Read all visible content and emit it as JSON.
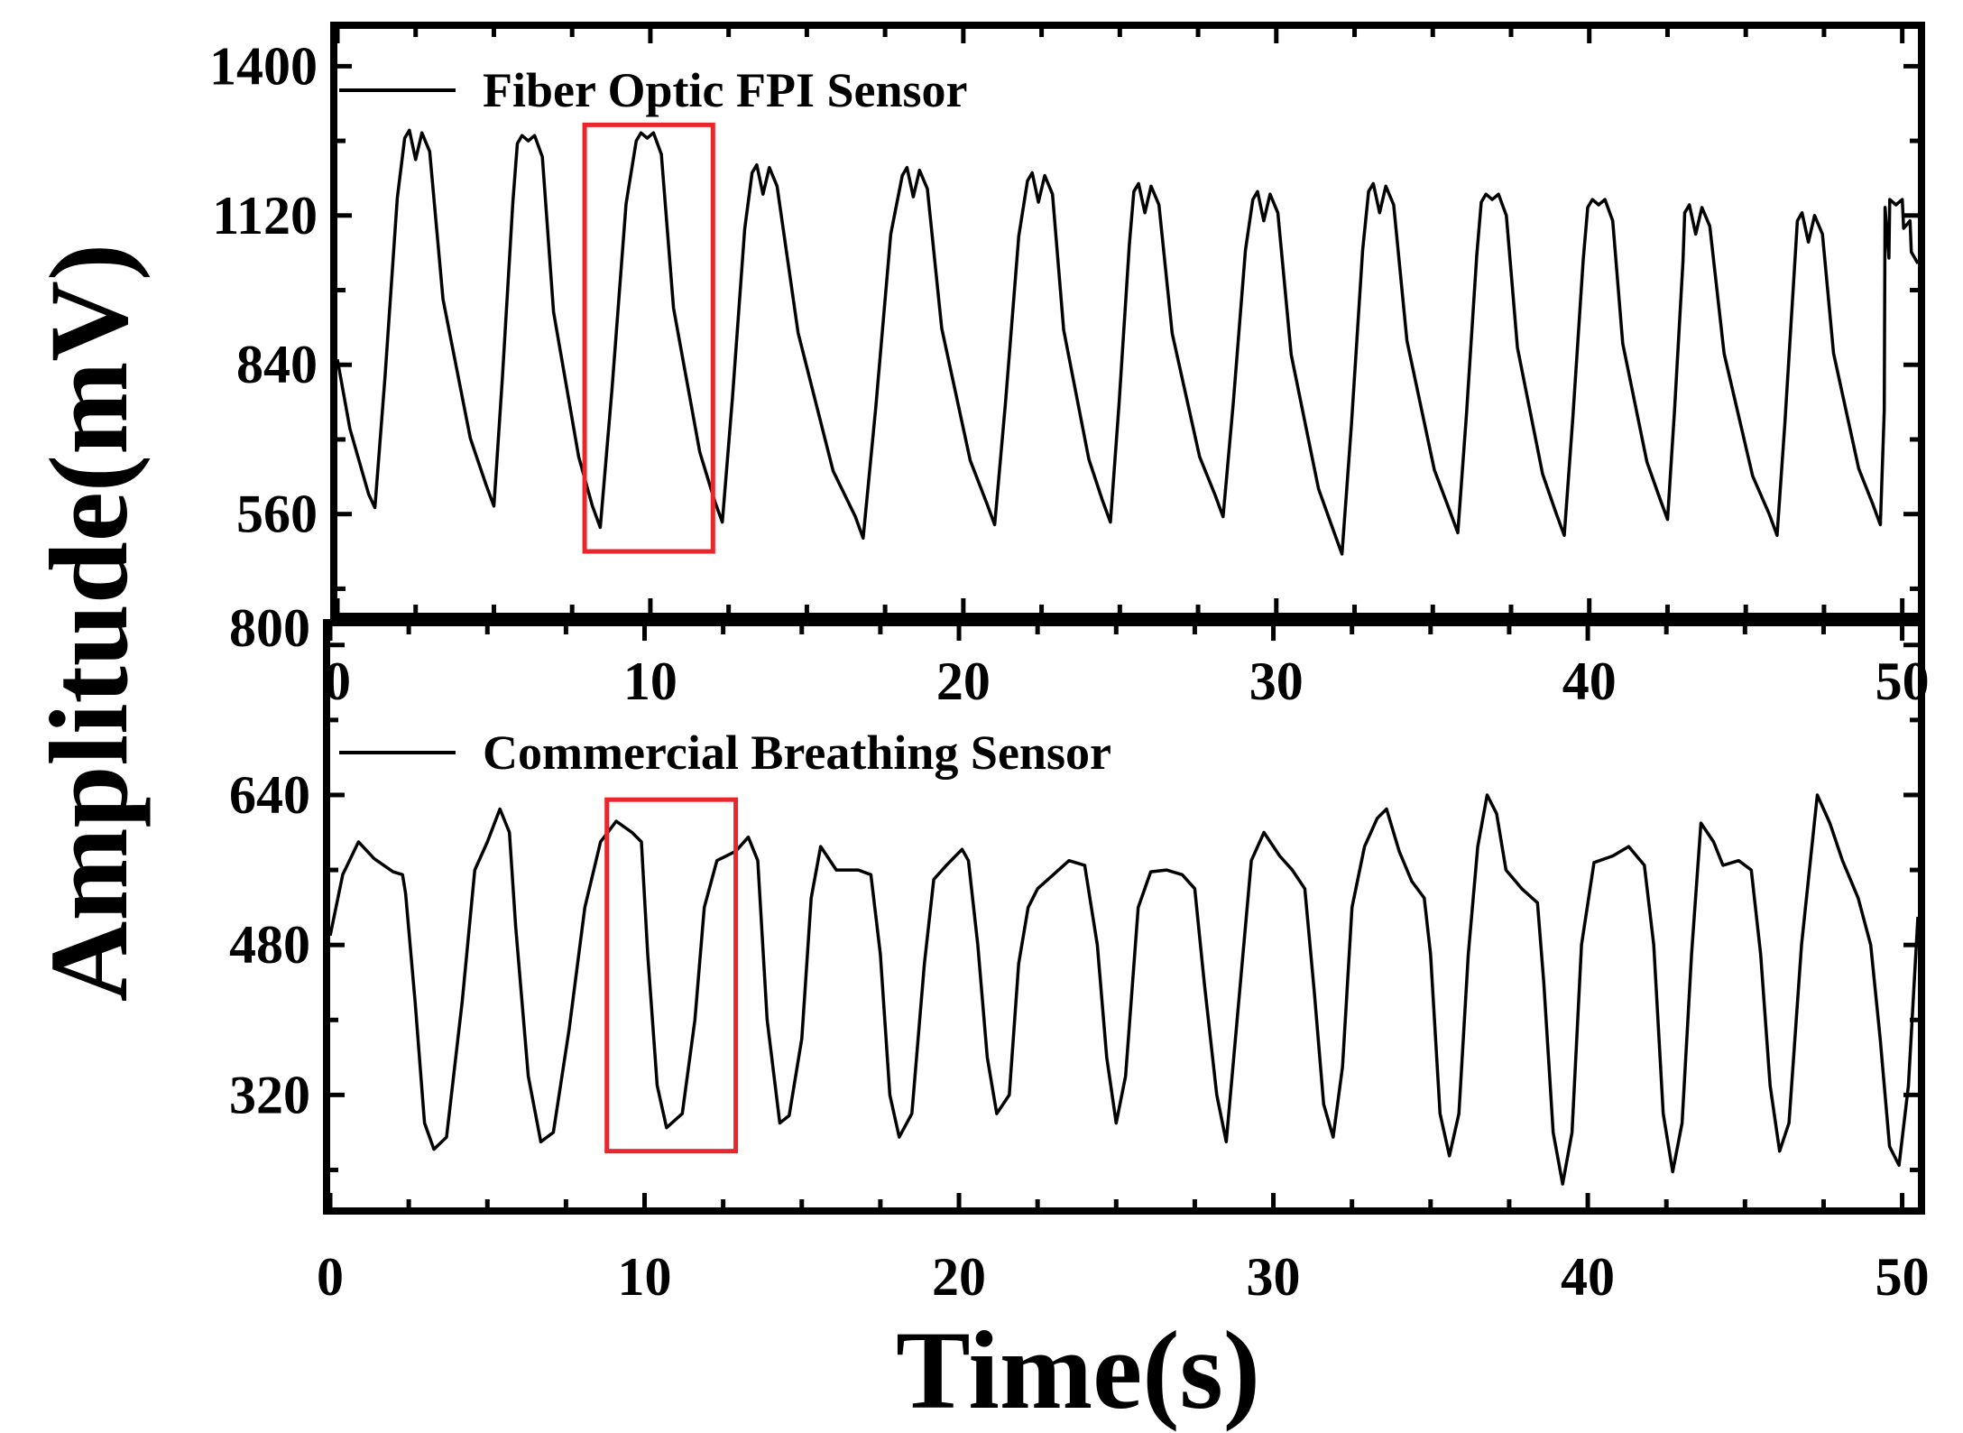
{
  "chart_data": [
    {
      "type": "line",
      "panel": "top",
      "legend": "Fiber Optic FPI Sensor",
      "xlabel": "Time(s)",
      "ylabel": "Amplitude(mV)",
      "xlim": [
        0,
        50.5
      ],
      "ylim": [
        375,
        1470
      ],
      "xticks": [
        0,
        10,
        20,
        30,
        40,
        50
      ],
      "xtick_labels": [
        "0",
        "10",
        "20",
        "30",
        "40",
        "50"
      ],
      "yticks": [
        560,
        840,
        1120,
        1400
      ],
      "ytick_labels": [
        "560",
        "840",
        "1120",
        "1400"
      ],
      "color": "#000000",
      "cycles": [
        {
          "start": 0.0,
          "peak_t": 2.5,
          "peak_v": 1280,
          "trough_t": 1.2,
          "trough_v": 572,
          "dip": true
        },
        {
          "start": 3.6,
          "peak_t": 6.1,
          "peak_v": 1270,
          "trough_t": 5.0,
          "trough_v": 575,
          "dip": false
        },
        {
          "start": 7.6,
          "peak_t": 9.9,
          "peak_v": 1275,
          "trough_t": 8.4,
          "trough_v": 535,
          "dip": false
        },
        {
          "start": 11.5,
          "peak_t": 13.6,
          "peak_v": 1215,
          "trough_t": 12.3,
          "trough_v": 545,
          "dip": true
        },
        {
          "start": 15.6,
          "peak_t": 18.4,
          "peak_v": 1210,
          "trough_t": 16.8,
          "trough_v": 515,
          "dip": true
        },
        {
          "start": 20.0,
          "peak_t": 22.4,
          "peak_v": 1200,
          "trough_t": 21.0,
          "trough_v": 540,
          "dip": true
        },
        {
          "start": 23.5,
          "peak_t": 25.8,
          "peak_v": 1180,
          "trough_t": 24.7,
          "trough_v": 545,
          "dip": true
        },
        {
          "start": 27.0,
          "peak_t": 29.6,
          "peak_v": 1165,
          "trough_t": 28.3,
          "trough_v": 555,
          "dip": true
        },
        {
          "start": 31.0,
          "peak_t": 33.3,
          "peak_v": 1180,
          "trough_t": 32.1,
          "trough_v": 485,
          "dip": true
        },
        {
          "start": 34.8,
          "peak_t": 36.9,
          "peak_v": 1160,
          "trough_t": 35.8,
          "trough_v": 525,
          "dip": false
        },
        {
          "start": 38.3,
          "peak_t": 40.3,
          "peak_v": 1150,
          "trough_t": 39.2,
          "trough_v": 520,
          "dip": false
        },
        {
          "start": 41.6,
          "peak_t": 43.4,
          "peak_v": 1140,
          "trough_t": 42.5,
          "trough_v": 550,
          "dip": true
        },
        {
          "start": 45.0,
          "peak_t": 47.0,
          "peak_v": 1125,
          "trough_t": 46.0,
          "trough_v": 520,
          "dip": true
        },
        {
          "start": 48.5,
          "peak_t": 49.8,
          "peak_v": 1150,
          "trough_t": 49.3,
          "trough_v": 540,
          "dip": false
        }
      ],
      "initial_value": 850,
      "final_value": 1030,
      "highlight_box": {
        "x0": 7.9,
        "x1": 12.0,
        "y0": 490,
        "y1": 1290,
        "color": "#e8262c"
      }
    },
    {
      "type": "line",
      "panel": "bottom",
      "legend": "Commercial Breathing Sensor",
      "xlabel": "Time(s)",
      "ylabel": "Amplitude(mV)",
      "xlim": [
        0,
        50.5
      ],
      "ylim": [
        200,
        820
      ],
      "xticks": [
        0,
        10,
        20,
        30,
        40,
        50
      ],
      "xtick_labels": [
        "0",
        "10",
        "20",
        "30",
        "40",
        "50"
      ],
      "yticks": [
        320,
        480,
        640,
        800
      ],
      "ytick_labels": [
        "320",
        "480",
        "640",
        "800"
      ],
      "color": "#000000",
      "points": [
        [
          0.0,
          490
        ],
        [
          0.4,
          555
        ],
        [
          0.9,
          590
        ],
        [
          1.4,
          572
        ],
        [
          2.0,
          558
        ],
        [
          2.3,
          555
        ],
        [
          2.4,
          535
        ],
        [
          2.7,
          420
        ],
        [
          3.0,
          290
        ],
        [
          3.3,
          262
        ],
        [
          3.7,
          275
        ],
        [
          4.2,
          420
        ],
        [
          4.6,
          560
        ],
        [
          5.0,
          590
        ],
        [
          5.4,
          625
        ],
        [
          5.7,
          600
        ],
        [
          5.9,
          500
        ],
        [
          6.3,
          340
        ],
        [
          6.7,
          270
        ],
        [
          7.1,
          280
        ],
        [
          7.6,
          390
        ],
        [
          8.1,
          520
        ],
        [
          8.6,
          590
        ],
        [
          9.1,
          612
        ],
        [
          9.6,
          600
        ],
        [
          9.9,
          590
        ],
        [
          10.1,
          470
        ],
        [
          10.4,
          330
        ],
        [
          10.7,
          285
        ],
        [
          11.2,
          300
        ],
        [
          11.6,
          400
        ],
        [
          11.9,
          520
        ],
        [
          12.3,
          570
        ],
        [
          12.9,
          580
        ],
        [
          13.3,
          595
        ],
        [
          13.6,
          570
        ],
        [
          13.9,
          400
        ],
        [
          14.3,
          290
        ],
        [
          14.6,
          298
        ],
        [
          15.0,
          380
        ],
        [
          15.3,
          530
        ],
        [
          15.6,
          585
        ],
        [
          16.1,
          560
        ],
        [
          16.8,
          560
        ],
        [
          17.2,
          555
        ],
        [
          17.5,
          470
        ],
        [
          17.8,
          320
        ],
        [
          18.1,
          275
        ],
        [
          18.5,
          300
        ],
        [
          18.9,
          460
        ],
        [
          19.2,
          550
        ],
        [
          19.6,
          565
        ],
        [
          20.1,
          582
        ],
        [
          20.3,
          570
        ],
        [
          20.6,
          480
        ],
        [
          20.9,
          360
        ],
        [
          21.2,
          300
        ],
        [
          21.6,
          320
        ],
        [
          21.9,
          460
        ],
        [
          22.2,
          520
        ],
        [
          22.5,
          540
        ],
        [
          23.0,
          555
        ],
        [
          23.5,
          570
        ],
        [
          24.0,
          565
        ],
        [
          24.4,
          480
        ],
        [
          24.7,
          360
        ],
        [
          25.0,
          290
        ],
        [
          25.3,
          340
        ],
        [
          25.7,
          520
        ],
        [
          26.1,
          558
        ],
        [
          26.6,
          560
        ],
        [
          27.1,
          555
        ],
        [
          27.5,
          540
        ],
        [
          27.8,
          440
        ],
        [
          28.2,
          320
        ],
        [
          28.5,
          270
        ],
        [
          28.9,
          420
        ],
        [
          29.3,
          570
        ],
        [
          29.7,
          600
        ],
        [
          30.2,
          575
        ],
        [
          30.6,
          560
        ],
        [
          31.0,
          540
        ],
        [
          31.3,
          430
        ],
        [
          31.6,
          310
        ],
        [
          31.9,
          275
        ],
        [
          32.2,
          350
        ],
        [
          32.5,
          520
        ],
        [
          32.9,
          585
        ],
        [
          33.3,
          615
        ],
        [
          33.6,
          625
        ],
        [
          34.0,
          580
        ],
        [
          34.4,
          548
        ],
        [
          34.8,
          530
        ],
        [
          35.0,
          470
        ],
        [
          35.3,
          300
        ],
        [
          35.6,
          255
        ],
        [
          35.9,
          300
        ],
        [
          36.2,
          470
        ],
        [
          36.5,
          585
        ],
        [
          36.8,
          640
        ],
        [
          37.1,
          620
        ],
        [
          37.4,
          560
        ],
        [
          37.9,
          540
        ],
        [
          38.4,
          525
        ],
        [
          38.6,
          440
        ],
        [
          38.9,
          280
        ],
        [
          39.2,
          225
        ],
        [
          39.5,
          280
        ],
        [
          39.8,
          480
        ],
        [
          40.2,
          568
        ],
        [
          40.8,
          575
        ],
        [
          41.3,
          585
        ],
        [
          41.8,
          565
        ],
        [
          42.1,
          480
        ],
        [
          42.4,
          300
        ],
        [
          42.7,
          238
        ],
        [
          43.0,
          290
        ],
        [
          43.3,
          470
        ],
        [
          43.6,
          610
        ],
        [
          44.0,
          590
        ],
        [
          44.3,
          565
        ],
        [
          44.8,
          570
        ],
        [
          45.2,
          560
        ],
        [
          45.5,
          470
        ],
        [
          45.8,
          330
        ],
        [
          46.1,
          260
        ],
        [
          46.4,
          290
        ],
        [
          46.8,
          480
        ],
        [
          47.3,
          640
        ],
        [
          47.7,
          610
        ],
        [
          48.1,
          570
        ],
        [
          48.6,
          530
        ],
        [
          49.0,
          480
        ],
        [
          49.3,
          380
        ],
        [
          49.6,
          265
        ],
        [
          49.9,
          245
        ],
        [
          50.2,
          330
        ],
        [
          50.5,
          510
        ]
      ],
      "highlight_box": {
        "x0": 8.8,
        "x1": 12.9,
        "y0": 260,
        "y1": 635,
        "color": "#e8262c"
      }
    }
  ]
}
